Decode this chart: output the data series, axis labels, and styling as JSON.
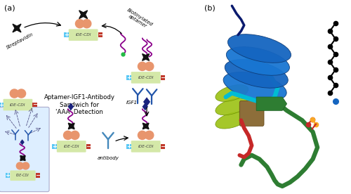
{
  "fig_width": 5.0,
  "fig_height": 2.76,
  "dpi": 100,
  "bg_color": "#ffffff",
  "label_a": "(a)",
  "label_b": "(b)",
  "ide_cdi_color": "#d4e8a8",
  "ide_cdi_text": "IDE-CDI",
  "plus_color": "#5bc8f5",
  "minus_color": "#c0392b",
  "streptavidin_color": "#e8956d",
  "aptamer_color": "#8B008B",
  "star_color": "#111111",
  "igf1_diamond_color": "#1a237e",
  "center_text": "Aptamer-IGF1-Antibody\nSandwich for\n'AAA' Detection",
  "streptavidin_text": "Streptavidin",
  "biotinylated_text": "Biotinylated\naptamer",
  "igf1_text": "IGF1",
  "antibody_text": "antibody",
  "inset_bg": "#ddeeff",
  "inset_edge": "#aaaacc"
}
